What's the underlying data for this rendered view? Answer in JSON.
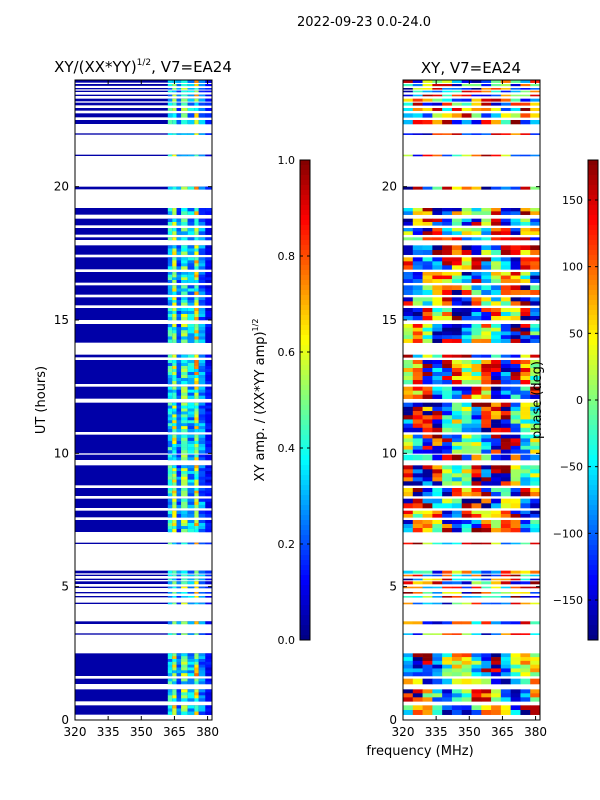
{
  "page": {
    "suptitle": "2022-09-23 0.0-24.0"
  },
  "colors": {
    "axis": "#000000",
    "background": "#ffffff",
    "empty_band": "#ffffff"
  },
  "chart_data": [
    {
      "type": "heatmap",
      "panel": "amplitude",
      "title": "XY/(XX*YY)",
      "title_sup": "1/2",
      "title_suffix": ", V7=EA24",
      "xlabel": "",
      "ylabel": "UT (hours)",
      "xlim": [
        320,
        382
      ],
      "ylim": [
        0,
        24
      ],
      "xticks": [
        320,
        335,
        350,
        365,
        380
      ],
      "yticks": [
        0,
        5,
        10,
        15,
        20
      ],
      "colorbar": {
        "label": "XY amp. / (XX*YY amp)",
        "label_sup": "1/2",
        "range": [
          0.0,
          1.0
        ],
        "ticks": [
          "0.0",
          "0.2",
          "0.4",
          "0.6",
          "0.8",
          "1.0"
        ],
        "colormap": "jet"
      },
      "base_value": 0.04,
      "channel_value_profile": [
        {
          "from": 320,
          "to": 362,
          "value": 0.04
        },
        {
          "from": 362,
          "to": 364,
          "value": 0.35
        },
        {
          "from": 364,
          "to": 366,
          "value": 0.5
        },
        {
          "from": 366,
          "to": 368,
          "value": 0.22
        },
        {
          "from": 368,
          "to": 371,
          "value": 0.45
        },
        {
          "from": 371,
          "to": 374,
          "value": 0.3
        },
        {
          "from": 374,
          "to": 376,
          "value": 0.55
        },
        {
          "from": 376,
          "to": 379,
          "value": 0.25
        },
        {
          "from": 379,
          "to": 382,
          "value": 0.12
        }
      ]
    },
    {
      "type": "heatmap",
      "panel": "phase",
      "title": "XY, V7=EA24",
      "xlabel": "frequency (MHz)",
      "ylabel": "",
      "xlim": [
        320,
        382
      ],
      "ylim": [
        0,
        24
      ],
      "xticks": [
        320,
        335,
        350,
        365,
        380
      ],
      "yticks": [
        0,
        5,
        10,
        15,
        20
      ],
      "colorbar": {
        "label": "phase (deg)",
        "range": [
          -180,
          180
        ],
        "ticks": [
          "−150",
          "−100",
          "−50",
          "0",
          "50",
          "100",
          "150"
        ],
        "colormap": "jet"
      }
    }
  ],
  "data_bands_hours": [
    [
      0.2,
      0.55
    ],
    [
      0.7,
      1.15
    ],
    [
      1.35,
      1.55
    ],
    [
      1.65,
      2.5
    ],
    [
      3.2,
      3.25
    ],
    [
      3.6,
      3.7
    ],
    [
      4.35,
      4.4
    ],
    [
      4.6,
      4.65
    ],
    [
      4.75,
      4.8
    ],
    [
      4.95,
      5.0
    ],
    [
      5.1,
      5.2
    ],
    [
      5.25,
      5.3
    ],
    [
      5.4,
      5.45
    ],
    [
      5.5,
      5.6
    ],
    [
      6.6,
      6.65
    ],
    [
      7.05,
      7.5
    ],
    [
      7.6,
      7.85
    ],
    [
      7.95,
      8.3
    ],
    [
      8.4,
      8.7
    ],
    [
      8.8,
      9.55
    ],
    [
      9.75,
      9.95
    ],
    [
      10.0,
      10.7
    ],
    [
      10.8,
      11.9
    ],
    [
      12.05,
      12.5
    ],
    [
      12.6,
      13.5
    ],
    [
      13.6,
      13.7
    ],
    [
      14.15,
      14.85
    ],
    [
      15.0,
      15.45
    ],
    [
      15.55,
      15.85
    ],
    [
      15.95,
      16.3
    ],
    [
      16.4,
      16.8
    ],
    [
      16.9,
      17.35
    ],
    [
      17.45,
      17.8
    ],
    [
      18.0,
      18.1
    ],
    [
      18.2,
      18.45
    ],
    [
      18.55,
      18.8
    ],
    [
      18.95,
      19.2
    ],
    [
      19.9,
      20.0
    ],
    [
      21.15,
      21.2
    ],
    [
      21.95,
      22.0
    ],
    [
      22.35,
      22.5
    ],
    [
      22.6,
      22.75
    ],
    [
      22.85,
      22.95
    ],
    [
      23.05,
      23.15
    ],
    [
      23.2,
      23.3
    ],
    [
      23.4,
      23.45
    ],
    [
      23.55,
      23.6
    ],
    [
      23.65,
      23.7
    ],
    [
      23.78,
      23.85
    ],
    [
      23.9,
      24.0
    ]
  ]
}
